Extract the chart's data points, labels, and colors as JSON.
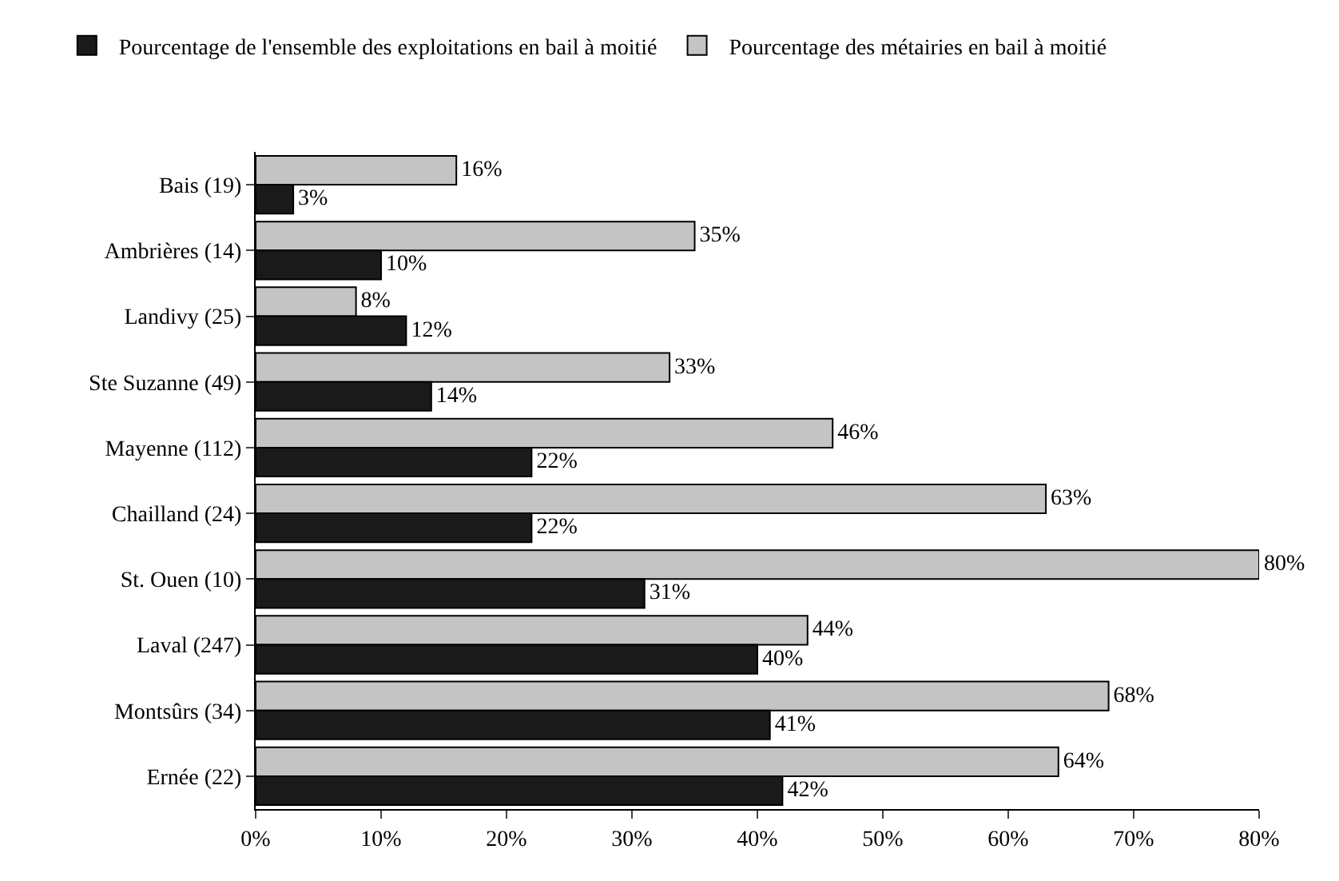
{
  "chart_data": {
    "type": "bar",
    "orientation": "horizontal",
    "categories": [
      "Bais (19)",
      "Ambrières (14)",
      "Landivy (25)",
      "Ste Suzanne (49)",
      "Mayenne (112)",
      "Chailland (24)",
      "St. Ouen (10)",
      "Laval (247)",
      "Montsûrs (34)",
      "Ernée (22)"
    ],
    "series": [
      {
        "name": "Pourcentage de l'ensemble des exploitations en bail à moitié",
        "color": "#1a1a1a",
        "values": [
          3,
          10,
          12,
          14,
          22,
          22,
          31,
          40,
          41,
          42
        ],
        "value_labels": [
          "3%",
          "10%",
          "12%",
          "14%",
          "22%",
          "22%",
          "31%",
          "40%",
          "41%",
          "42%"
        ]
      },
      {
        "name": "Pourcentage des métairies en bail à moitié",
        "color": "#c4c4c4",
        "values": [
          16,
          35,
          8,
          33,
          46,
          63,
          80,
          44,
          68,
          64
        ],
        "value_labels": [
          "16%",
          "35%",
          "8%",
          "33%",
          "46%",
          "63%",
          "80%",
          "44%",
          "68%",
          "64%"
        ]
      }
    ],
    "xlim": [
      0,
      80
    ],
    "xticks": [
      {
        "value": 0,
        "label": "0%"
      },
      {
        "value": 10,
        "label": "10%"
      },
      {
        "value": 20,
        "label": "20%"
      },
      {
        "value": 30,
        "label": "30%"
      },
      {
        "value": 40,
        "label": "40%"
      },
      {
        "value": 50,
        "label": "50%"
      },
      {
        "value": 60,
        "label": "60%"
      },
      {
        "value": 70,
        "label": "70%"
      },
      {
        "value": 80,
        "label": "80%"
      }
    ],
    "legend": "top left"
  }
}
